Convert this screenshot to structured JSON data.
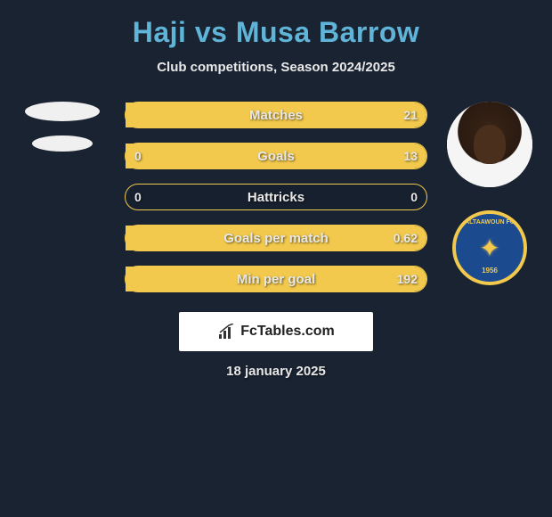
{
  "header": {
    "title": "Haji vs Musa Barrow",
    "subtitle": "Club competitions, Season 2024/2025"
  },
  "colors": {
    "background": "#1a2332",
    "title": "#5fb4d8",
    "accent": "#f2c94c",
    "text": "#e8e8e8",
    "badge_bg": "#1b4a8f"
  },
  "players": {
    "left": {
      "name": "Haji",
      "has_photo": false
    },
    "right": {
      "name": "Musa Barrow",
      "has_photo": true,
      "club": {
        "name": "ALTAAWOUN FC",
        "year": "1956"
      }
    }
  },
  "stats": {
    "type": "comparison-bars",
    "bar_border_color": "#f2c94c",
    "bar_fill_color": "#f2c94c",
    "label_fontsize": 15,
    "value_fontsize": 14,
    "rows": [
      {
        "label": "Matches",
        "left": "",
        "right": "21",
        "fill_left_pct": 0,
        "fill_right_pct": 100
      },
      {
        "label": "Goals",
        "left": "0",
        "right": "13",
        "fill_left_pct": 0,
        "fill_right_pct": 100
      },
      {
        "label": "Hattricks",
        "left": "0",
        "right": "0",
        "fill_left_pct": 0,
        "fill_right_pct": 0
      },
      {
        "label": "Goals per match",
        "left": "",
        "right": "0.62",
        "fill_left_pct": 0,
        "fill_right_pct": 100
      },
      {
        "label": "Min per goal",
        "left": "",
        "right": "192",
        "fill_left_pct": 0,
        "fill_right_pct": 100
      }
    ]
  },
  "footer": {
    "brand": "FcTables.com",
    "date": "18 january 2025"
  }
}
